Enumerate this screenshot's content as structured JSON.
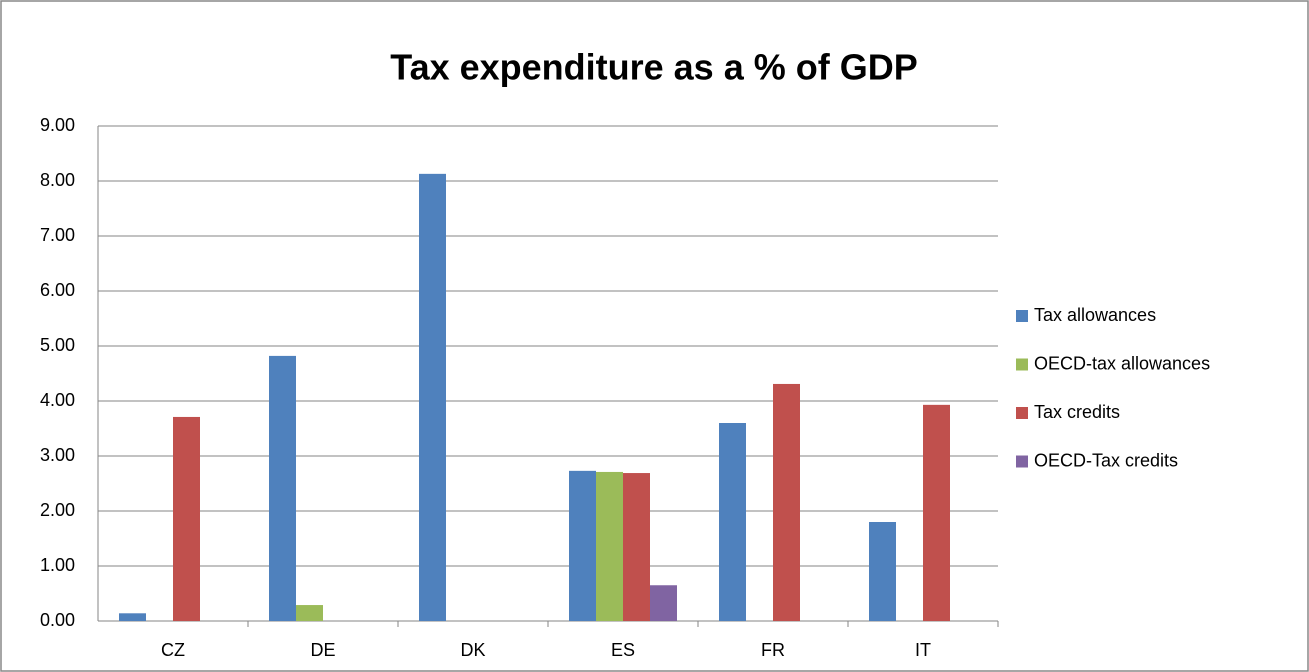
{
  "chart_data": {
    "type": "bar",
    "title": "Tax expenditure as a % of GDP",
    "categories": [
      "CZ",
      "DE",
      "DK",
      "ES",
      "FR",
      "IT"
    ],
    "series": [
      {
        "name": "Tax allowances",
        "color": "#4f81bd",
        "values": [
          0.14,
          4.82,
          8.13,
          2.73,
          3.6,
          1.8
        ]
      },
      {
        "name": "OECD-tax allowances",
        "color": "#9bbb59",
        "values": [
          null,
          0.29,
          null,
          2.71,
          null,
          null
        ]
      },
      {
        "name": "Tax credits",
        "color": "#c0504d",
        "values": [
          3.71,
          null,
          null,
          2.69,
          4.31,
          3.93
        ]
      },
      {
        "name": "OECD-Tax credits",
        "color": "#8064a2",
        "values": [
          null,
          null,
          null,
          0.65,
          null,
          null
        ]
      }
    ],
    "ylim": [
      0,
      9
    ],
    "yticks": [
      {
        "value": 0,
        "label": "0.00"
      },
      {
        "value": 1,
        "label": "1.00"
      },
      {
        "value": 2,
        "label": "2.00"
      },
      {
        "value": 3,
        "label": "3.00"
      },
      {
        "value": 4,
        "label": "4.00"
      },
      {
        "value": 5,
        "label": "5.00"
      },
      {
        "value": 6,
        "label": "6.00"
      },
      {
        "value": 7,
        "label": "7.00"
      },
      {
        "value": 8,
        "label": "8.00"
      },
      {
        "value": 9,
        "label": "9.00"
      }
    ],
    "grid": true,
    "legend": "right"
  }
}
